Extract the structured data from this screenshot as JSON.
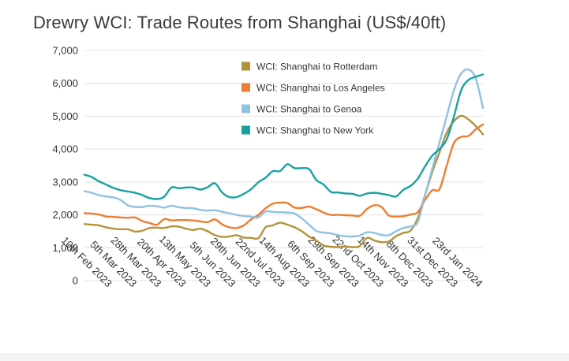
{
  "chart_data": {
    "type": "line",
    "title": "Drewry WCI: Trade Routes from Shanghai (US$/40ft)",
    "xlabel": "",
    "ylabel": "",
    "ylim": [
      0,
      7000
    ],
    "yticks": [
      "0",
      "1,000",
      "2,000",
      "3,000",
      "4,000",
      "5,000",
      "6,000",
      "7,000"
    ],
    "x_tick_labels": [
      "10th Feb 2023",
      "5th Mar 2023",
      "28th Mar 2023",
      "20th Apr 2023",
      "13th May 2023",
      "5th Jun 2023",
      "29th Jun 2023",
      "22nd Jul 2023",
      "14th Aug 2023",
      "6th Sep 2023",
      "29th Sep 2023",
      "22nd Oct 2023",
      "14th Nov 2023",
      "8th Dec 2023",
      "31st Dec 2023",
      "23rd Jan 2024"
    ],
    "x_start": "2023-01-26",
    "x_end": "2024-02-01",
    "grid": "horizontal",
    "legend_position": "top-right",
    "series": [
      {
        "name": "WCI: Shanghai to Rotterdam",
        "color": "#b5923a",
        "values": [
          1720,
          1700,
          1680,
          1620,
          1580,
          1560,
          1560,
          1490,
          1520,
          1600,
          1610,
          1600,
          1650,
          1640,
          1580,
          1540,
          1580,
          1500,
          1380,
          1330,
          1340,
          1380,
          1310,
          1300,
          1290,
          1620,
          1680,
          1760,
          1700,
          1620,
          1500,
          1340,
          1220,
          1070,
          1030,
          1020,
          1040,
          1020,
          1050,
          1300,
          1220,
          1170,
          1190,
          1350,
          1450,
          1520,
          1900,
          2600,
          3300,
          3900,
          4500,
          4850,
          5010,
          4900,
          4700,
          4450
        ]
      },
      {
        "name": "WCI: Shanghai to Los Angeles",
        "color": "#ed7d31",
        "values": [
          2050,
          2040,
          2010,
          1950,
          1940,
          1920,
          1910,
          1920,
          1810,
          1750,
          1700,
          1870,
          1830,
          1840,
          1840,
          1830,
          1800,
          1780,
          1860,
          1710,
          1620,
          1600,
          1680,
          1860,
          2000,
          2200,
          2340,
          2370,
          2360,
          2220,
          2210,
          2250,
          2170,
          2070,
          2000,
          2000,
          1990,
          1980,
          1970,
          2180,
          2290,
          2240,
          1980,
          1950,
          1960,
          2010,
          2080,
          2450,
          2750,
          2780,
          3500,
          4190,
          4370,
          4400,
          4600,
          4750
        ]
      },
      {
        "name": "WCI: Shanghai to Genoa",
        "color": "#8fc1e3",
        "values": [
          2720,
          2670,
          2600,
          2560,
          2530,
          2450,
          2290,
          2240,
          2240,
          2280,
          2260,
          2220,
          2280,
          2230,
          2210,
          2200,
          2150,
          2130,
          2140,
          2090,
          2050,
          2000,
          1960,
          1950,
          1920,
          2100,
          2090,
          2080,
          2070,
          2040,
          1890,
          1700,
          1510,
          1460,
          1440,
          1380,
          1350,
          1340,
          1370,
          1470,
          1450,
          1390,
          1380,
          1500,
          1600,
          1650,
          1780,
          2600,
          3400,
          4200,
          5000,
          5800,
          6300,
          6420,
          6150,
          5250
        ]
      },
      {
        "name": "WCI: Shanghai to New York",
        "color": "#17a2a2",
        "values": [
          3220,
          3150,
          3020,
          2920,
          2820,
          2750,
          2710,
          2670,
          2600,
          2510,
          2480,
          2550,
          2830,
          2810,
          2830,
          2830,
          2770,
          2840,
          2960,
          2680,
          2540,
          2540,
          2640,
          2780,
          2990,
          3130,
          3330,
          3330,
          3540,
          3420,
          3420,
          3390,
          3060,
          2920,
          2700,
          2680,
          2650,
          2640,
          2580,
          2650,
          2670,
          2640,
          2600,
          2560,
          2760,
          2880,
          3100,
          3470,
          3800,
          4000,
          4300,
          5000,
          5800,
          6100,
          6200,
          6270
        ]
      }
    ]
  }
}
